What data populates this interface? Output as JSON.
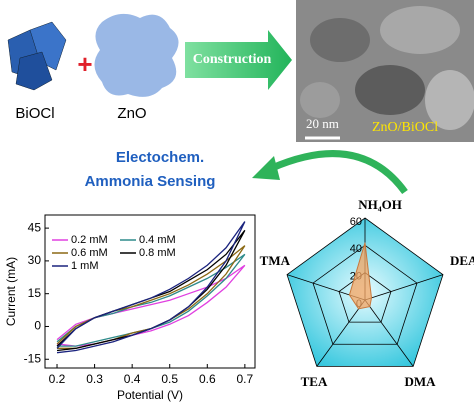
{
  "graphic": {
    "materials": [
      "BiOCl",
      "ZnO"
    ],
    "plus": "+",
    "step": "Construction",
    "scale_bar": "20 nm",
    "composite": "ZnO/BiOCl",
    "application": [
      "Electochem.",
      "Ammonia Sensing"
    ]
  },
  "chart_data": [
    {
      "type": "line",
      "x_label": "Potential (V)",
      "y_label": "Current (mA)",
      "x": [
        0.2,
        0.25,
        0.3,
        0.35,
        0.4,
        0.45,
        0.5,
        0.55,
        0.6,
        0.65,
        0.7,
        0.65,
        0.6,
        0.55,
        0.5,
        0.45,
        0.4,
        0.35,
        0.3,
        0.25,
        0.2
      ],
      "xlim": [
        0.168,
        0.727
      ],
      "xticks": [
        0.2,
        0.3,
        0.4,
        0.5,
        0.6,
        0.7
      ],
      "ylim": [
        -19,
        51
      ],
      "yticks": [
        -15,
        0,
        15,
        30,
        45
      ],
      "series": [
        {
          "name": "0.2 mM",
          "color": "#e040e0",
          "values": [
            -6,
            1,
            4,
            6,
            8,
            10,
            12,
            15,
            18,
            22,
            28,
            18,
            11,
            5,
            1,
            -2,
            -4,
            -6,
            -8,
            -9,
            -8
          ]
        },
        {
          "name": "0.4 mM",
          "color": "#2e8b8b",
          "values": [
            -7,
            0,
            4,
            6,
            9,
            11,
            14,
            18,
            22,
            27,
            33,
            22,
            14,
            7,
            2,
            -1,
            -3,
            -5,
            -7,
            -9,
            -9
          ]
        },
        {
          "name": "0.6 mM",
          "color": "#8b6914",
          "values": [
            -8,
            0,
            4,
            7,
            9,
            12,
            15,
            19,
            24,
            30,
            37,
            24,
            15,
            8,
            3,
            -1,
            -3,
            -6,
            -8,
            -10,
            -10
          ]
        },
        {
          "name": "0.8 mM",
          "color": "#000000",
          "values": [
            -9,
            -1,
            4,
            7,
            10,
            13,
            16,
            21,
            26,
            33,
            44,
            28,
            17,
            9,
            3,
            -1,
            -4,
            -6,
            -8,
            -10,
            -11
          ]
        },
        {
          "name": "1 mM",
          "color": "#1a237e",
          "values": [
            -10,
            -1,
            4,
            7,
            10,
            13,
            17,
            22,
            28,
            36,
            48,
            30,
            18,
            9,
            3,
            -1,
            -4,
            -7,
            -9,
            -11,
            -12
          ]
        }
      ]
    },
    {
      "type": "radar",
      "categories": [
        "NH₄OH",
        "DEA",
        "DMA",
        "TEA",
        "TMA"
      ],
      "values": [
        42,
        5,
        6,
        8,
        12
      ],
      "color": "#f4a460",
      "rlim": [
        0,
        60
      ],
      "rticks": [
        0,
        20,
        40,
        60
      ]
    }
  ]
}
